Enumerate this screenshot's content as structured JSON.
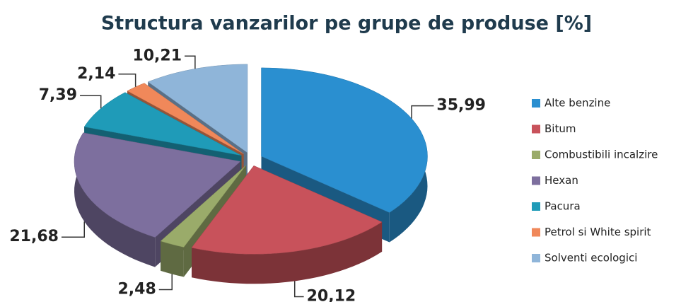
{
  "chart_data": {
    "type": "pie",
    "title": "Structura  vanzarilor pe grupe de produse [%]",
    "categories": [
      "Alte benzine",
      "Bitum",
      "Combustibili incalzire",
      "Hexan",
      "Pacura",
      "Petrol si White spirit",
      "Solventi ecologici"
    ],
    "values": [
      35.99,
      20.12,
      2.48,
      21.68,
      7.39,
      2.14,
      10.21
    ],
    "value_labels": [
      "35,99",
      "20,12",
      "2,48",
      "21,68",
      "7,39",
      "2,14",
      "10,21"
    ],
    "colors": [
      "#2a8fd0",
      "#c8525b",
      "#9aab6a",
      "#7d6f9e",
      "#1f9bb8",
      "#f0885a",
      "#8fb5d9"
    ],
    "legend": "right"
  }
}
